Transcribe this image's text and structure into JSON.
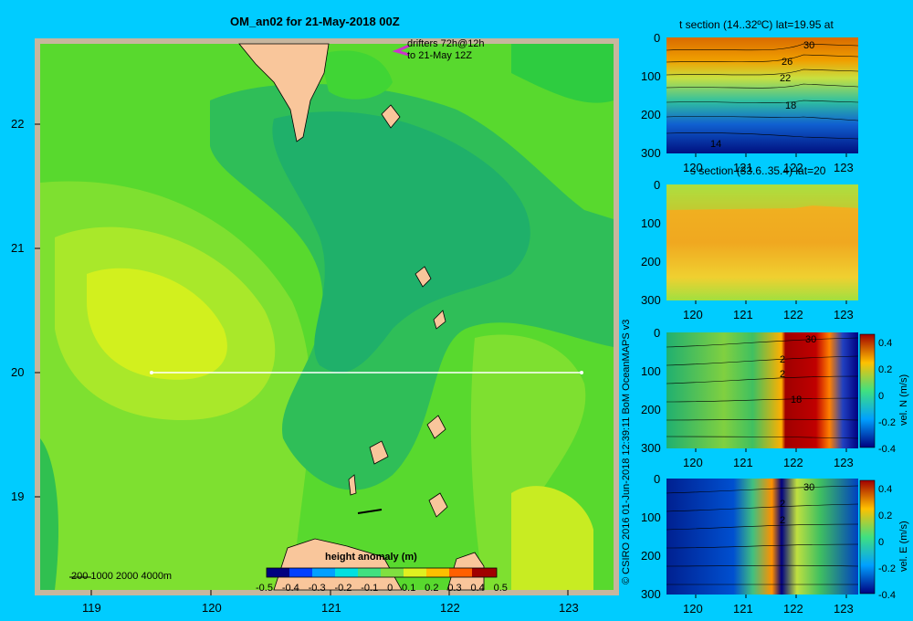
{
  "map": {
    "title": "OM_an02 for 21-May-2018 00Z",
    "drifters_line1": "drifters 72h@12h",
    "drifters_line2": "to 21-May 12Z",
    "y_ticks": [
      "22",
      "21",
      "20",
      "19"
    ],
    "x_ticks": [
      "119",
      "120",
      "121",
      "122",
      "123"
    ],
    "depth_legend": "200 1000 2000 4000m",
    "colorbar_title": "height anomaly (m)",
    "colorbar_ticks": [
      "-0.5",
      "-0.4",
      "-0.3",
      "-0.2",
      "-0.1",
      "0",
      "0.1",
      "0.2",
      "0.3",
      "0.4",
      "0.5"
    ],
    "credit": "© CSIRO 2016   01-Jun-2018 12:39:11 BoM OceanMAPS v3"
  },
  "sections": [
    {
      "title": "t section (14..32ºC) lat=19.95 at",
      "y_ticks": [
        "0",
        "100",
        "200",
        "300"
      ],
      "x_ticks": [
        "120",
        "121",
        "122",
        "123"
      ],
      "contours": [
        "30",
        "26",
        "22",
        "18",
        "14"
      ],
      "colorbar": null
    },
    {
      "title": "s section (33.6..35.4) lat=20",
      "y_ticks": [
        "0",
        "100",
        "200",
        "300"
      ],
      "x_ticks": [
        "120",
        "121",
        "122",
        "123"
      ],
      "contours": [],
      "colorbar": null
    },
    {
      "title": "",
      "y_ticks": [
        "0",
        "100",
        "200",
        "300"
      ],
      "x_ticks": [
        "120",
        "121",
        "122",
        "123"
      ],
      "contours": [
        "30",
        "2",
        "2",
        "18"
      ],
      "colorbar": {
        "label": "vel. N (m/s)",
        "ticks": [
          "0.4",
          "0.2",
          "0",
          "-0.2",
          "-0.4"
        ]
      }
    },
    {
      "title": "",
      "y_ticks": [
        "0",
        "100",
        "200",
        "300"
      ],
      "x_ticks": [
        "120",
        "121",
        "122",
        "123"
      ],
      "contours": [
        "30",
        "2",
        "2"
      ],
      "colorbar": {
        "label": "vel. E (m/s)",
        "ticks": [
          "0.4",
          "0.2",
          "0",
          "-0.2",
          "-0.4"
        ]
      }
    }
  ],
  "colors": {
    "background": "#00ccff",
    "land": "#f9c69b",
    "frame": "#c7b69e"
  }
}
